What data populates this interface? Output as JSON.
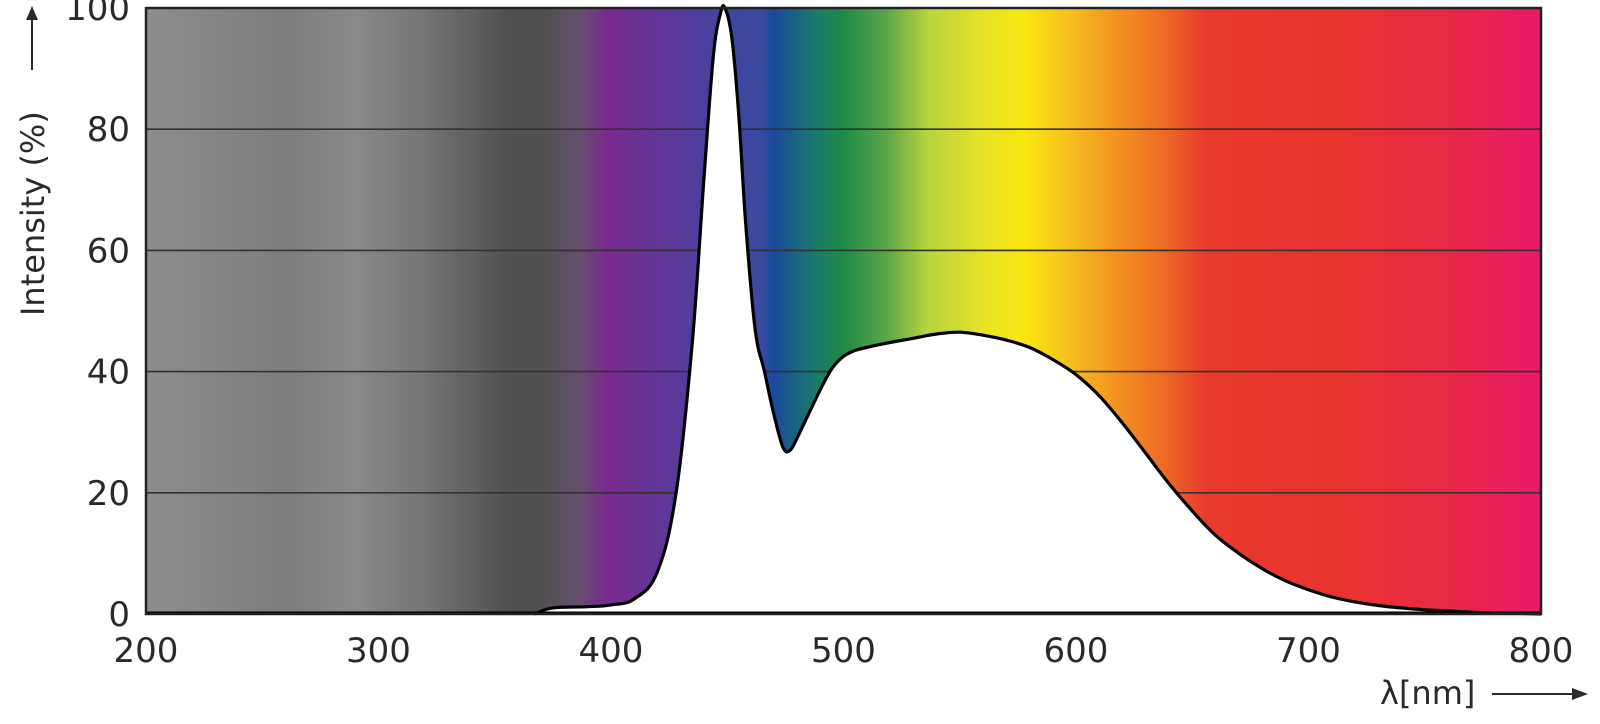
{
  "chart_data": {
    "type": "area",
    "title": "",
    "xlabel": "λ[nm]",
    "ylabel": "Intensity (%)",
    "xlim": [
      200,
      800
    ],
    "ylim": [
      0,
      100
    ],
    "x_ticks": [
      200,
      300,
      400,
      500,
      600,
      700,
      800
    ],
    "y_ticks": [
      0,
      20,
      40,
      60,
      80,
      100
    ],
    "grid": "horizontal",
    "legend": "none",
    "background": "visible spectrum color gradient (grey in UV, violet to red across 380–800 nm)",
    "series": [
      {
        "values_x": [
          367,
          375,
          390,
          400,
          410,
          420,
          428,
          435,
          440,
          444,
          447,
          449,
          452,
          455,
          458,
          462,
          466,
          470,
          474,
          477,
          480,
          485,
          490,
          495,
          500,
          505,
          510,
          520,
          530,
          540,
          550,
          560,
          570,
          580,
          590,
          600,
          610,
          620,
          630,
          640,
          650,
          660,
          670,
          680,
          690,
          700,
          710,
          720,
          730,
          740,
          750,
          760,
          770,
          780,
          790,
          800
        ],
        "values_y": [
          0,
          1,
          1.2,
          1.5,
          2.5,
          7,
          20,
          45,
          72,
          92,
          99,
          100,
          95,
          82,
          64,
          47,
          40,
          33,
          27.5,
          27,
          29,
          33,
          37,
          40.5,
          42.5,
          43.5,
          44,
          44.8,
          45.5,
          46.2,
          46.5,
          46,
          45.2,
          44,
          42,
          39.5,
          36,
          31.5,
          26.5,
          21.5,
          17,
          13,
          10,
          7.5,
          5.5,
          4,
          2.8,
          2,
          1.4,
          1,
          0.7,
          0.5,
          0.3,
          0.2,
          0.1,
          0
        ]
      }
    ],
    "colors": {
      "uv_grey_light": "#8e8e8e",
      "uv_grey_dark": "#505050",
      "violet": "#7a2a8f",
      "blue": "#3f46a0",
      "green": "#1f8b45",
      "yellow": "#fbe611",
      "orange": "#f39a1f",
      "red": "#e83a2c",
      "magenta": "#e8196a",
      "curve": "#000000",
      "grid": "#333333"
    }
  }
}
